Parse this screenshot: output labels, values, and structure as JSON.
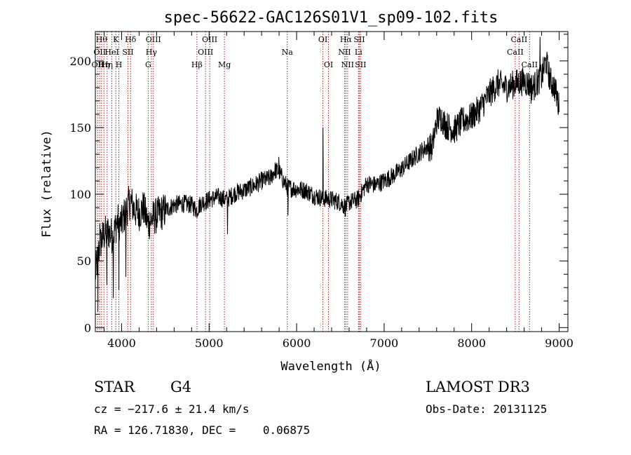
{
  "chart_data": {
    "type": "line",
    "title": "spec-56622-GAC126S01V1_sp09-102.fits",
    "xlabel": "Wavelength (Å)",
    "ylabel": "Flux (relative)",
    "xlim": [
      3700,
      9100
    ],
    "ylim": [
      -3,
      222
    ],
    "x_ticks": [
      4000,
      5000,
      6000,
      7000,
      8000,
      9000
    ],
    "x_tick_labels": [
      "4000",
      "5000",
      "6000",
      "7000",
      "8000",
      "9000"
    ],
    "y_ticks": [
      0,
      50,
      100,
      150,
      200
    ],
    "y_tick_labels": [
      "0",
      "50",
      "100",
      "150",
      "200"
    ],
    "series": [
      {
        "name": "flux",
        "x": [
          3700,
          3750,
          3800,
          3850,
          3900,
          3950,
          4000,
          4050,
          4100,
          4150,
          4200,
          4250,
          4300,
          4350,
          4400,
          4500,
          4600,
          4700,
          4800,
          4860,
          4900,
          5000,
          5100,
          5200,
          5300,
          5400,
          5500,
          5600,
          5700,
          5750,
          5800,
          5850,
          5900,
          6000,
          6100,
          6200,
          6300,
          6400,
          6500,
          6560,
          6600,
          6700,
          6800,
          6900,
          7000,
          7100,
          7200,
          7300,
          7400,
          7500,
          7550,
          7600,
          7650,
          7700,
          7800,
          7900,
          8000,
          8100,
          8200,
          8300,
          8400,
          8500,
          8600,
          8700,
          8800,
          8850,
          8900,
          8950,
          9000
        ],
        "y": [
          40,
          62,
          70,
          72,
          68,
          80,
          78,
          88,
          95,
          88,
          86,
          90,
          78,
          82,
          84,
          88,
          92,
          93,
          92,
          88,
          93,
          96,
          98,
          96,
          101,
          103,
          106,
          110,
          112,
          118,
          117,
          110,
          105,
          104,
          103,
          99,
          97,
          96,
          94,
          90,
          94,
          96,
          108,
          107,
          110,
          114,
          119,
          125,
          131,
          136,
          135,
          155,
          158,
          152,
          148,
          155,
          158,
          165,
          175,
          183,
          180,
          183,
          185,
          180,
          188,
          200,
          185,
          180,
          165
        ]
      }
    ],
    "spikes": [
      {
        "x": 3728,
        "y": 12
      },
      {
        "x": 3750,
        "y": 78
      },
      {
        "x": 3830,
        "y": 32
      },
      {
        "x": 3905,
        "y": 22
      },
      {
        "x": 3968,
        "y": 28
      },
      {
        "x": 4050,
        "y": 38
      },
      {
        "x": 5795,
        "y": 128
      },
      {
        "x": 5210,
        "y": 70
      },
      {
        "x": 5900,
        "y": 84
      },
      {
        "x": 6300,
        "y": 150
      },
      {
        "x": 8780,
        "y": 218
      },
      {
        "x": 8680,
        "y": 168
      }
    ],
    "lines": [
      {
        "x": 3727,
        "label": "OII",
        "row": 2
      },
      {
        "x": 3750,
        "label": "OII",
        "row": 1
      },
      {
        "x": 3771,
        "label": "Hθ",
        "row": 0
      },
      {
        "x": 3798,
        "label": "Hη",
        "row": 2
      },
      {
        "x": 3835,
        "label": "Hη",
        "row": 2
      },
      {
        "x": 3889,
        "label": "HeI",
        "row": 1
      },
      {
        "x": 3934,
        "label": "K",
        "row": 0
      },
      {
        "x": 3969,
        "label": "H",
        "row": 2
      },
      {
        "x": 4072,
        "label": "SII",
        "row": 1
      },
      {
        "x": 4102,
        "label": "Hδ",
        "row": 0
      },
      {
        "x": 4304,
        "label": "G",
        "row": 2
      },
      {
        "x": 4340,
        "label": "Hγ",
        "row": 1
      },
      {
        "x": 4363,
        "label": "OIII",
        "row": 0
      },
      {
        "x": 4861,
        "label": "Hβ",
        "row": 2
      },
      {
        "x": 4959,
        "label": "OIII",
        "row": 1
      },
      {
        "x": 5007,
        "label": "OIII",
        "row": 0
      },
      {
        "x": 5175,
        "label": "Mg",
        "row": 2
      },
      {
        "x": 5893,
        "label": "Na",
        "row": 1
      },
      {
        "x": 6300,
        "label": "OI",
        "row": 0
      },
      {
        "x": 6364,
        "label": "OI",
        "row": 2
      },
      {
        "x": 6548,
        "label": "NII",
        "row": 1
      },
      {
        "x": 6563,
        "label": "Hα",
        "row": 0
      },
      {
        "x": 6583,
        "label": "NII",
        "row": 2
      },
      {
        "x": 6707,
        "label": "Li",
        "row": 1
      },
      {
        "x": 6716,
        "label": "SII",
        "row": 0
      },
      {
        "x": 6731,
        "label": "SII",
        "row": 2
      },
      {
        "x": 8498,
        "label": "CaII",
        "row": 1
      },
      {
        "x": 8542,
        "label": "CaII",
        "row": 0
      },
      {
        "x": 8662,
        "label": "CaII",
        "row": 2
      }
    ]
  },
  "info": {
    "object_class": "STAR",
    "subclass": "G4",
    "survey": "LAMOST DR3",
    "cz": "cz = −217.6 ± 21.4 km/s",
    "obs_date": "Obs-Date: 20131125",
    "coords": "RA = 126.71830, DEC =    0.06875"
  }
}
